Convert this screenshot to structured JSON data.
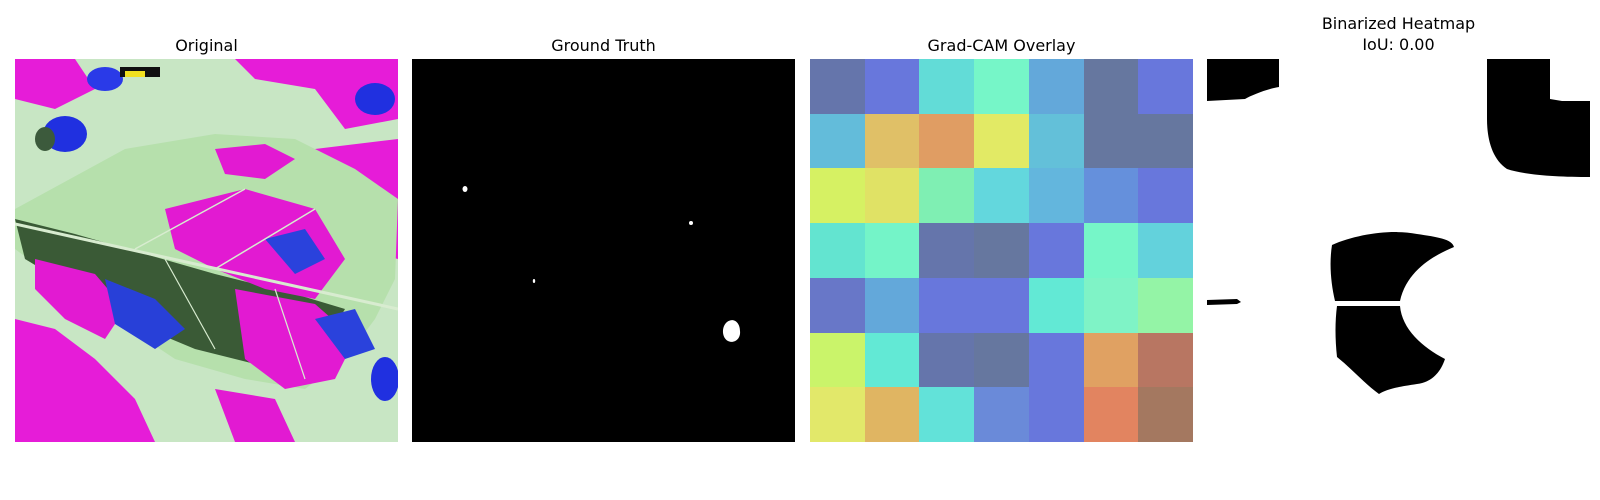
{
  "panels": {
    "original": {
      "title": "Original"
    },
    "ground_truth": {
      "title": "Ground Truth"
    },
    "gradcam": {
      "title": "Grad-CAM Overlay",
      "grid_colors": [
        [
          "#6575ab",
          "#6877dc",
          "#62dcd7",
          "#76f6c8",
          "#63a8da",
          "#66779f",
          "#6877dc"
        ],
        [
          "#63bcda",
          "#e0c067",
          "#e09d63",
          "#e2ea65",
          "#63c0d9",
          "#66779f",
          "#66779f"
        ],
        [
          "#d6f163",
          "#e0e265",
          "#7fefb3",
          "#63d7dd",
          "#63b6dd",
          "#6590dc",
          "#6877dc"
        ],
        [
          "#63e4d0",
          "#74f4c8",
          "#6575ab",
          "#66779f",
          "#6877dc",
          "#76f6c8",
          "#63d2dc"
        ],
        [
          "#6877c8",
          "#63a8da",
          "#6877dc",
          "#6877dc",
          "#62e9d5",
          "#7ff3c6",
          "#94f4a6"
        ],
        [
          "#caf46a",
          "#62e9d5",
          "#6575ab",
          "#66779f",
          "#6877dc",
          "#e0a162",
          "#b87662"
        ],
        [
          "#e2e86a",
          "#e0b562",
          "#62e2d9",
          "#6a8ad9",
          "#6877dc",
          "#e28460",
          "#a47860"
        ]
      ]
    },
    "binarized": {
      "title_line1": "Binarized Heatmap",
      "title_line2": "IoU: 0.00"
    }
  }
}
